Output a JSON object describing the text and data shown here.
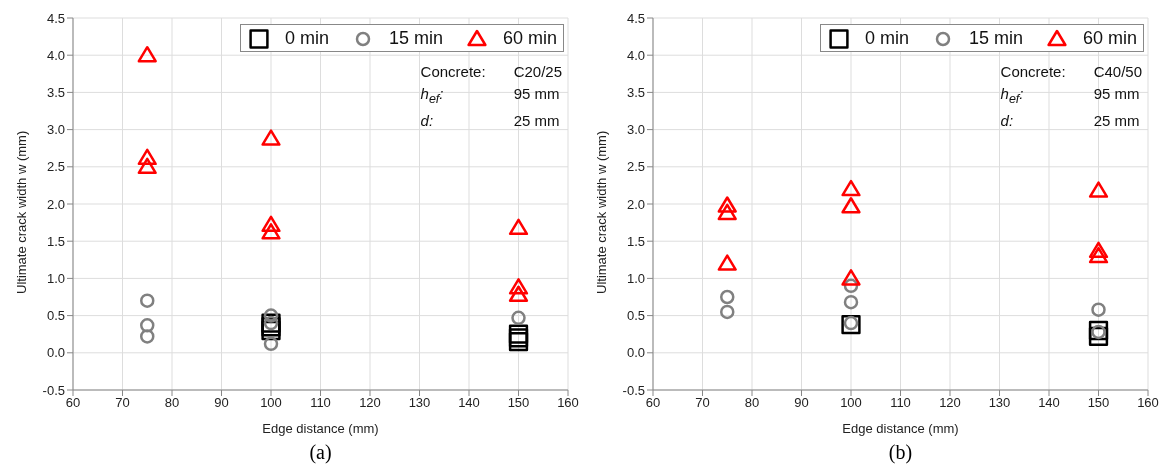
{
  "chart_data": [
    {
      "type": "scatter",
      "xlabel": "Edge distance (mm)",
      "ylabel": "Ultimate crack width w (mm)",
      "xlim": [
        60,
        160
      ],
      "xticks": [
        60,
        70,
        80,
        90,
        100,
        110,
        120,
        130,
        140,
        150,
        160
      ],
      "ylim": [
        -0.5,
        4.5
      ],
      "yticks": [
        -0.5,
        {
          "value": 0,
          "label": "0.0"
        },
        0.5,
        {
          "value": 1,
          "label": "1.0"
        },
        1.5,
        {
          "value": 2,
          "label": "2.0"
        },
        2.5,
        {
          "value": 3,
          "label": "3.0"
        },
        3.5,
        {
          "value": 4,
          "label": "4.0"
        },
        4.5
      ],
      "grid": true,
      "legend": "top right",
      "annotations": [
        "Concrete:",
        "C20/25",
        "h$_{ef}$:",
        "95 mm",
        "d:",
        "25 mm",
        "(a)"
      ],
      "series": [
        {
          "name": "0 min",
          "color": "#000000",
          "marker": "square",
          "x": [
            100,
            100,
            100,
            150,
            150,
            150
          ],
          "values": [
            0.3,
            0.35,
            0.4,
            0.15,
            0.2,
            0.25
          ]
        },
        {
          "name": "15 min",
          "color": "#808080",
          "marker": "circle",
          "x": [
            75,
            75,
            75,
            100,
            100,
            100,
            150
          ],
          "values": [
            0.7,
            0.37,
            0.22,
            0.5,
            0.4,
            0.12,
            0.47
          ]
        },
        {
          "name": "60 min",
          "color": "#ff0000",
          "marker": "triangle",
          "x": [
            75,
            75,
            75,
            100,
            100,
            100,
            150,
            150,
            150
          ],
          "values": [
            4.0,
            2.62,
            2.5,
            2.88,
            1.72,
            1.62,
            1.68,
            0.88,
            0.78
          ]
        }
      ]
    },
    {
      "type": "scatter",
      "xlabel": "Edge distance (mm)",
      "ylabel": "Ultimate crack width w (mm)",
      "xlim": [
        60,
        160
      ],
      "xticks": [
        60,
        70,
        80,
        90,
        100,
        110,
        120,
        130,
        140,
        150,
        160
      ],
      "ylim": [
        -0.5,
        4.5
      ],
      "yticks": [
        -0.5,
        {
          "value": 0,
          "label": "0.0"
        },
        0.5,
        {
          "value": 1,
          "label": "1.0"
        },
        1.5,
        {
          "value": 2,
          "label": "2.0"
        },
        2.5,
        {
          "value": 3,
          "label": "3.0"
        },
        3.5,
        {
          "value": 4,
          "label": "4.0"
        },
        4.5
      ],
      "grid": true,
      "legend": "top right",
      "annotations": [
        "Concrete:",
        "C40/50",
        "h$_{ef}$:",
        "95 mm",
        "d:",
        "25 mm",
        "(b)"
      ],
      "series": [
        {
          "name": "0 min",
          "color": "#000000",
          "marker": "square",
          "x": [
            100,
            150,
            150
          ],
          "values": [
            0.38,
            0.22,
            0.3
          ]
        },
        {
          "name": "15 min",
          "color": "#808080",
          "marker": "circle",
          "x": [
            75,
            75,
            100,
            100,
            100,
            150,
            150
          ],
          "values": [
            0.75,
            0.55,
            0.9,
            0.68,
            0.4,
            0.58,
            0.28
          ]
        },
        {
          "name": "60 min",
          "color": "#ff0000",
          "marker": "triangle",
          "x": [
            75,
            75,
            75,
            100,
            100,
            100,
            150,
            150,
            150
          ],
          "values": [
            1.98,
            1.88,
            1.2,
            2.2,
            1.97,
            1.0,
            2.18,
            1.37,
            1.3
          ]
        }
      ]
    }
  ]
}
